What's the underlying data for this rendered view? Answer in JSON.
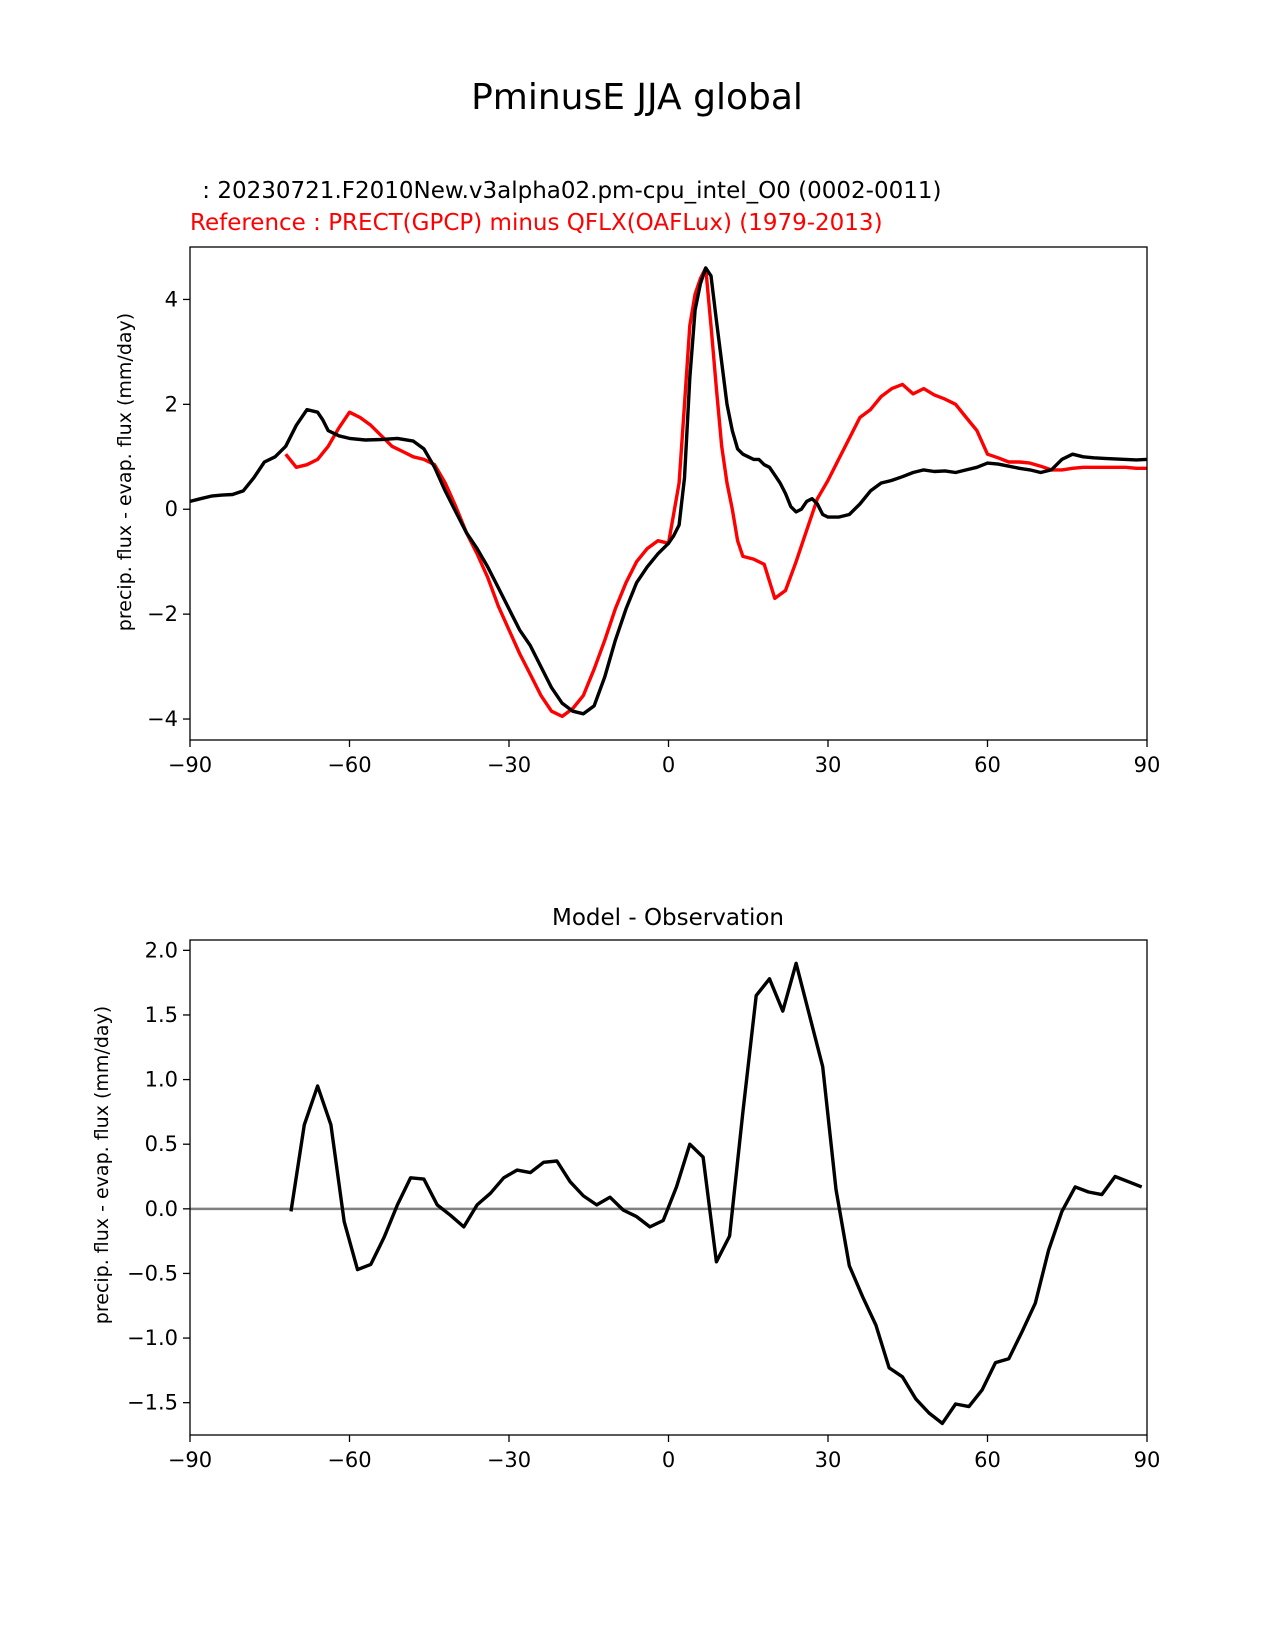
{
  "figure": {
    "suptitle": "PminusE JJA global"
  },
  "chart_data": [
    {
      "type": "line",
      "test_label": " : 20230721.F2010New.v3alpha02.pm-cpu_intel_O0 (0002-0011)",
      "ref_label": "Reference : PRECT(GPCP) minus QFLX(OAFLux) (1979-2013)",
      "ylabel": "precip. flux - evap. flux (mm/day)",
      "xlim": [
        -90,
        90
      ],
      "ylim": [
        -4.4,
        5.0
      ],
      "xticks": [
        -90,
        -60,
        -30,
        0,
        30,
        60,
        90
      ],
      "xtick_labels": [
        "−90",
        "−60",
        "−30",
        "0",
        "30",
        "60",
        "90"
      ],
      "yticks": [
        -4,
        -2,
        0,
        2,
        4
      ],
      "ytick_labels": [
        "−4",
        "−2",
        "0",
        "2",
        "4"
      ],
      "colors": {
        "test": "#000000",
        "ref": "#ff0000"
      },
      "series": [
        {
          "name": "test",
          "x": [
            -90,
            -88,
            -86,
            -84,
            -82,
            -80,
            -78,
            -76,
            -74,
            -72,
            -70,
            -68,
            -66,
            -65,
            -64,
            -62,
            -60,
            -57,
            -54,
            -51,
            -48,
            -46,
            -44,
            -42,
            -40,
            -38,
            -36,
            -34,
            -32,
            -30,
            -28,
            -26,
            -24,
            -22,
            -20,
            -18,
            -16,
            -14,
            -12,
            -10,
            -8,
            -6,
            -4,
            -2,
            0,
            1,
            2,
            3,
            4,
            5,
            6,
            7,
            8,
            9,
            10,
            11,
            12,
            13,
            14,
            15,
            16,
            17,
            18,
            19,
            20,
            21,
            22,
            23,
            24,
            25,
            26,
            27,
            28,
            29,
            30,
            31,
            32,
            34,
            36,
            38,
            40,
            42,
            44,
            46,
            48,
            50,
            52,
            54,
            56,
            58,
            60,
            62,
            64,
            66,
            68,
            70,
            72,
            74,
            76,
            78,
            80,
            82,
            84,
            86,
            88,
            90
          ],
          "values": [
            0.15,
            0.2,
            0.25,
            0.27,
            0.28,
            0.35,
            0.6,
            0.9,
            1.0,
            1.2,
            1.6,
            1.9,
            1.85,
            1.7,
            1.5,
            1.4,
            1.35,
            1.32,
            1.33,
            1.35,
            1.3,
            1.15,
            0.8,
            0.35,
            -0.05,
            -0.45,
            -0.75,
            -1.1,
            -1.5,
            -1.9,
            -2.3,
            -2.6,
            -3.0,
            -3.4,
            -3.7,
            -3.85,
            -3.9,
            -3.75,
            -3.2,
            -2.5,
            -1.9,
            -1.4,
            -1.1,
            -0.85,
            -0.65,
            -0.5,
            -0.3,
            0.6,
            2.5,
            3.8,
            4.3,
            4.6,
            4.45,
            3.6,
            2.8,
            2.0,
            1.5,
            1.15,
            1.05,
            1.0,
            0.95,
            0.95,
            0.85,
            0.8,
            0.65,
            0.5,
            0.3,
            0.05,
            -0.05,
            0.0,
            0.15,
            0.2,
            0.1,
            -0.1,
            -0.15,
            -0.15,
            -0.15,
            -0.1,
            0.1,
            0.35,
            0.5,
            0.55,
            0.62,
            0.7,
            0.75,
            0.72,
            0.73,
            0.7,
            0.75,
            0.8,
            0.88,
            0.86,
            0.82,
            0.78,
            0.75,
            0.7,
            0.75,
            0.95,
            1.05,
            1.0,
            0.98,
            0.97,
            0.96,
            0.95,
            0.94,
            0.95
          ]
        },
        {
          "name": "reference",
          "x": [
            -72,
            -70,
            -68,
            -66,
            -64,
            -62,
            -60,
            -58,
            -56,
            -54,
            -52,
            -50,
            -48,
            -46,
            -44,
            -42,
            -40,
            -38,
            -36,
            -34,
            -32,
            -30,
            -28,
            -26,
            -24,
            -22,
            -20,
            -18,
            -16,
            -14,
            -12,
            -10,
            -8,
            -6,
            -4,
            -2,
            0,
            2,
            3,
            4,
            5,
            6,
            7,
            8,
            9,
            10,
            11,
            12,
            13,
            14,
            16,
            18,
            20,
            22,
            24,
            26,
            28,
            30,
            32,
            34,
            36,
            38,
            40,
            42,
            44,
            46,
            48,
            50,
            52,
            54,
            56,
            58,
            60,
            62,
            64,
            66,
            68,
            70,
            72,
            74,
            76,
            78,
            80,
            82,
            84,
            86,
            88,
            90
          ],
          "values": [
            1.05,
            0.8,
            0.85,
            0.95,
            1.2,
            1.55,
            1.85,
            1.75,
            1.6,
            1.4,
            1.2,
            1.1,
            1.0,
            0.95,
            0.85,
            0.5,
            0.05,
            -0.45,
            -0.85,
            -1.3,
            -1.85,
            -2.3,
            -2.75,
            -3.15,
            -3.55,
            -3.85,
            -3.95,
            -3.8,
            -3.55,
            -3.05,
            -2.5,
            -1.9,
            -1.4,
            -1.0,
            -0.75,
            -0.6,
            -0.65,
            0.5,
            2.0,
            3.5,
            4.1,
            4.4,
            4.6,
            3.5,
            2.3,
            1.2,
            0.5,
            0.0,
            -0.6,
            -0.9,
            -0.95,
            -1.05,
            -1.7,
            -1.55,
            -1.0,
            -0.4,
            0.2,
            0.55,
            0.95,
            1.35,
            1.75,
            1.9,
            2.15,
            2.3,
            2.38,
            2.2,
            2.3,
            2.18,
            2.1,
            2.0,
            1.75,
            1.5,
            1.05,
            0.98,
            0.9,
            0.9,
            0.88,
            0.82,
            0.75,
            0.75,
            0.78,
            0.8,
            0.8,
            0.8,
            0.8,
            0.8,
            0.78,
            0.78
          ]
        }
      ]
    },
    {
      "type": "line",
      "title": "Model - Observation",
      "ylabel": "precip. flux - evap. flux (mm/day)",
      "xlim": [
        -90,
        90
      ],
      "ylim": [
        -1.75,
        2.08
      ],
      "xticks": [
        -90,
        -60,
        -30,
        0,
        30,
        60,
        90
      ],
      "xtick_labels": [
        "−90",
        "−60",
        "−30",
        "0",
        "30",
        "60",
        "90"
      ],
      "yticks": [
        -1.5,
        -1.0,
        -0.5,
        0.0,
        0.5,
        1.0,
        1.5,
        2.0
      ],
      "ytick_labels": [
        "−1.5",
        "−1.0",
        "−0.5",
        "0.0",
        "0.5",
        "1.0",
        "1.5",
        "2.0"
      ],
      "zero_line": 0.0,
      "colors": {
        "diff": "#000000",
        "zero": "#808080"
      },
      "series": [
        {
          "name": "difference",
          "x": [
            -71,
            -68.5,
            -66,
            -63.5,
            -61,
            -58.5,
            -56,
            -53.5,
            -51,
            -48.5,
            -46,
            -43.5,
            -41,
            -38.5,
            -36,
            -33.5,
            -31,
            -28.5,
            -26,
            -23.5,
            -21,
            -18.5,
            -16,
            -13.5,
            -11,
            -8.5,
            -6,
            -3.5,
            -1,
            1.5,
            4,
            6.5,
            9,
            11.5,
            14,
            16.5,
            19,
            21.5,
            24,
            26.5,
            29,
            31.5,
            34,
            36.5,
            39,
            41.5,
            44,
            46.5,
            49,
            51.5,
            54,
            56.5,
            59,
            61.5,
            64,
            66.5,
            69,
            71.5,
            74,
            76.5,
            79,
            81.5,
            84,
            86.5,
            89
          ],
          "values": [
            -0.02,
            0.65,
            0.95,
            0.65,
            -0.1,
            -0.47,
            -0.43,
            -0.22,
            0.03,
            0.24,
            0.23,
            0.03,
            -0.05,
            -0.14,
            0.03,
            0.12,
            0.24,
            0.3,
            0.28,
            0.36,
            0.37,
            0.21,
            0.1,
            0.03,
            0.09,
            -0.01,
            -0.06,
            -0.14,
            -0.09,
            0.17,
            0.5,
            0.4,
            -0.41,
            -0.21,
            0.75,
            1.65,
            1.78,
            1.53,
            1.9,
            1.5,
            1.1,
            0.15,
            -0.44,
            -0.68,
            -0.9,
            -1.23,
            -1.3,
            -1.47,
            -1.58,
            -1.66,
            -1.51,
            -1.53,
            -1.4,
            -1.19,
            -1.16,
            -0.95,
            -0.73,
            -0.32,
            -0.02,
            0.17,
            0.13,
            0.11,
            0.25,
            0.21,
            0.17
          ]
        }
      ]
    }
  ]
}
